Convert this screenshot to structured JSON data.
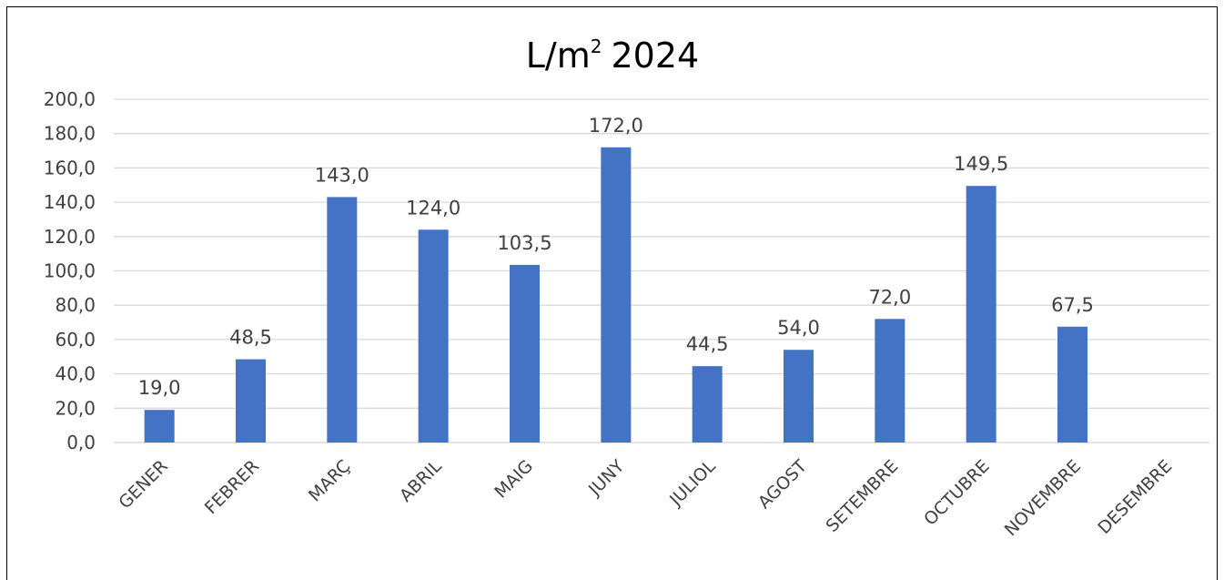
{
  "chart_data": {
    "type": "bar",
    "title_main": "L/m",
    "title_sup": "2",
    "title_year": "2024",
    "categories": [
      "GENER",
      "FEBRER",
      "MARÇ",
      "ABRIL",
      "MAIG",
      "JUNY",
      "JULIOL",
      "AGOST",
      "SETEMBRE",
      "OCTUBRE",
      "NOVEMBRE",
      "DESEMBRE"
    ],
    "series": [
      {
        "values": [
          19.0,
          48.5,
          143.0,
          124.0,
          103.5,
          172.0,
          44.5,
          54.0,
          72.0,
          149.5,
          67.5,
          null
        ]
      }
    ],
    "data_labels": [
      "19,0",
      "48,5",
      "143,0",
      "124,0",
      "103,5",
      "172,0",
      "44,5",
      "54,0",
      "72,0",
      "149,5",
      "67,5",
      ""
    ],
    "ylim": [
      0,
      200
    ],
    "y_ticks": [
      0,
      20,
      40,
      60,
      80,
      100,
      120,
      140,
      160,
      180,
      200
    ],
    "y_tick_labels": [
      "0,0",
      "20,0",
      "40,0",
      "60,0",
      "80,0",
      "100,0",
      "120,0",
      "140,0",
      "160,0",
      "180,0",
      "200,0"
    ],
    "xlabel": "",
    "ylabel": "",
    "grid": true,
    "legend": "none",
    "bar_color": "#4472C4",
    "grid_color": "#D9D9D9"
  }
}
